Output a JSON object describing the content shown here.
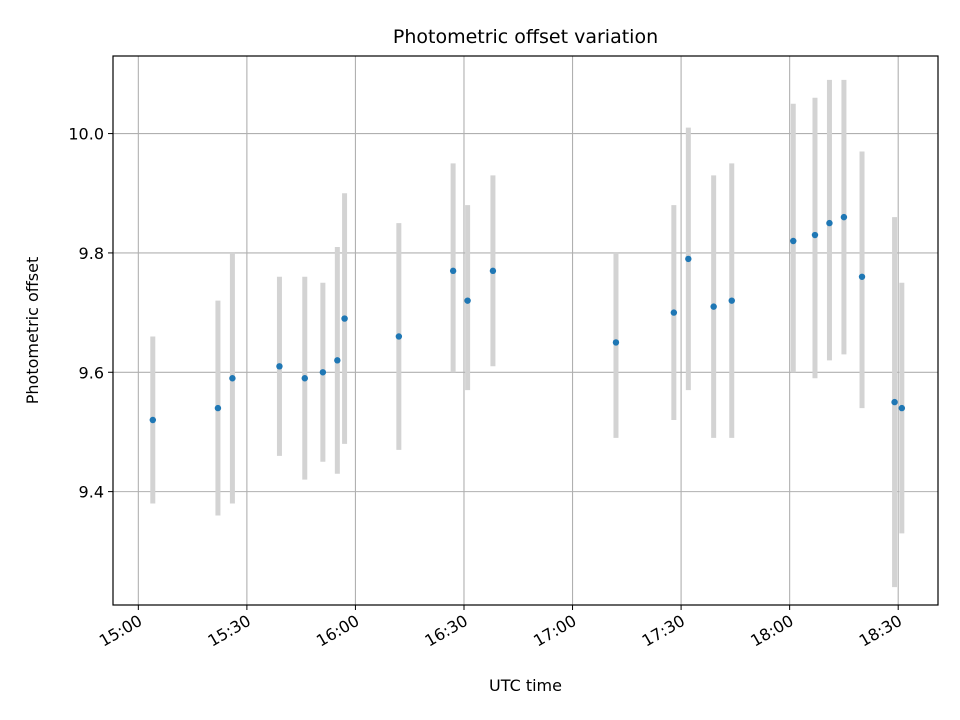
{
  "chart_data": {
    "type": "scatter",
    "title": "Photometric offset variation",
    "xlabel": "UTC time",
    "ylabel": "Photometric offset",
    "x_ticks": [
      "15:00",
      "15:30",
      "16:00",
      "16:30",
      "17:00",
      "17:30",
      "18:00",
      "18:30"
    ],
    "x_tick_values": [
      "15:00",
      "15:30",
      "16:00",
      "16:30",
      "17:00",
      "17:30",
      "18:00",
      "18:30"
    ],
    "y_ticks": [
      "9.4",
      "9.6",
      "9.8",
      "10.0"
    ],
    "y_tick_values": [
      9.4,
      9.6,
      9.8,
      10.0
    ],
    "xlim": [
      "14:53",
      "18:41"
    ],
    "ylim": [
      9.21,
      10.13
    ],
    "grid": true,
    "marker_color": "#1f77b4",
    "errorbar_color": "#d3d3d3",
    "points": [
      {
        "x": "15:04",
        "y": 9.52,
        "err_low": 9.38,
        "err_high": 9.66
      },
      {
        "x": "15:22",
        "y": 9.54,
        "err_low": 9.36,
        "err_high": 9.72
      },
      {
        "x": "15:26",
        "y": 9.59,
        "err_low": 9.38,
        "err_high": 9.8
      },
      {
        "x": "15:39",
        "y": 9.61,
        "err_low": 9.46,
        "err_high": 9.76
      },
      {
        "x": "15:46",
        "y": 9.59,
        "err_low": 9.42,
        "err_high": 9.76
      },
      {
        "x": "15:51",
        "y": 9.6,
        "err_low": 9.45,
        "err_high": 9.75
      },
      {
        "x": "15:55",
        "y": 9.62,
        "err_low": 9.43,
        "err_high": 9.81
      },
      {
        "x": "15:57",
        "y": 9.69,
        "err_low": 9.48,
        "err_high": 9.9
      },
      {
        "x": "16:12",
        "y": 9.66,
        "err_low": 9.47,
        "err_high": 9.85
      },
      {
        "x": "16:27",
        "y": 9.77,
        "err_low": 9.6,
        "err_high": 9.95
      },
      {
        "x": "16:31",
        "y": 9.72,
        "err_low": 9.57,
        "err_high": 9.88
      },
      {
        "x": "16:38",
        "y": 9.77,
        "err_low": 9.61,
        "err_high": 9.93
      },
      {
        "x": "17:12",
        "y": 9.65,
        "err_low": 9.49,
        "err_high": 9.8
      },
      {
        "x": "17:28",
        "y": 9.7,
        "err_low": 9.52,
        "err_high": 9.88
      },
      {
        "x": "17:32",
        "y": 9.79,
        "err_low": 9.57,
        "err_high": 10.01
      },
      {
        "x": "17:39",
        "y": 9.71,
        "err_low": 9.49,
        "err_high": 9.93
      },
      {
        "x": "17:44",
        "y": 9.72,
        "err_low": 9.49,
        "err_high": 9.95
      },
      {
        "x": "18:01",
        "y": 9.82,
        "err_low": 9.6,
        "err_high": 10.05
      },
      {
        "x": "18:07",
        "y": 9.83,
        "err_low": 9.59,
        "err_high": 10.06
      },
      {
        "x": "18:11",
        "y": 9.85,
        "err_low": 9.62,
        "err_high": 10.09
      },
      {
        "x": "18:15",
        "y": 9.86,
        "err_low": 9.63,
        "err_high": 10.09
      },
      {
        "x": "18:20",
        "y": 9.76,
        "err_low": 9.54,
        "err_high": 9.97
      },
      {
        "x": "18:29",
        "y": 9.55,
        "err_low": 9.24,
        "err_high": 9.86
      },
      {
        "x": "18:31",
        "y": 9.54,
        "err_low": 9.33,
        "err_high": 9.75
      }
    ]
  }
}
